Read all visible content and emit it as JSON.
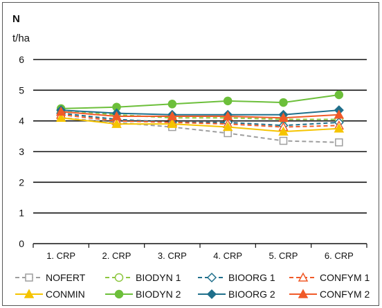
{
  "chart_data": {
    "type": "line",
    "panel_label": "N",
    "ylabel": "t/ha",
    "categories": [
      "1. CRP",
      "2. CRP",
      "3. CRP",
      "4. CRP",
      "5. CRP",
      "6. CRP"
    ],
    "ylim": [
      0,
      6
    ],
    "yticks": [
      "0",
      "1",
      "2",
      "3",
      "4",
      "5",
      "6"
    ],
    "grid": true,
    "legend_position": "bottom",
    "series": [
      {
        "name": "NOFERT",
        "color": "#9e9e9e",
        "dash": true,
        "marker": "square",
        "filled": false,
        "values": [
          4.1,
          3.95,
          3.8,
          3.6,
          3.35,
          3.3
        ]
      },
      {
        "name": "BIODYN 1",
        "color": "#8dc63f",
        "dash": true,
        "marker": "circle",
        "filled": false,
        "values": [
          4.35,
          4.2,
          4.1,
          4.1,
          4.05,
          4.05
        ]
      },
      {
        "name": "BIOORG 1",
        "color": "#1f6f8b",
        "dash": true,
        "marker": "diamond",
        "filled": false,
        "values": [
          4.25,
          4.05,
          3.95,
          3.95,
          3.85,
          3.95
        ]
      },
      {
        "name": "CONFYM 1",
        "color": "#f05a28",
        "dash": true,
        "marker": "triangle",
        "filled": false,
        "values": [
          4.2,
          4.0,
          3.95,
          3.9,
          3.8,
          3.85
        ]
      },
      {
        "name": "CONMIN",
        "color": "#f5c400",
        "dash": false,
        "marker": "triangle",
        "filled": true,
        "values": [
          4.1,
          3.9,
          3.9,
          3.8,
          3.65,
          3.75
        ]
      },
      {
        "name": "BIODYN 2",
        "color": "#6cbf3a",
        "dash": false,
        "marker": "circle",
        "filled": true,
        "values": [
          4.4,
          4.45,
          4.55,
          4.65,
          4.6,
          4.85
        ]
      },
      {
        "name": "BIOORG 2",
        "color": "#1f6f8b",
        "dash": false,
        "marker": "diamond",
        "filled": true,
        "values": [
          4.35,
          4.25,
          4.2,
          4.2,
          4.2,
          4.35
        ]
      },
      {
        "name": "CONFYM 2",
        "color": "#f05a28",
        "dash": false,
        "marker": "triangle",
        "filled": true,
        "values": [
          4.3,
          4.15,
          4.15,
          4.15,
          4.1,
          4.2
        ]
      }
    ]
  }
}
